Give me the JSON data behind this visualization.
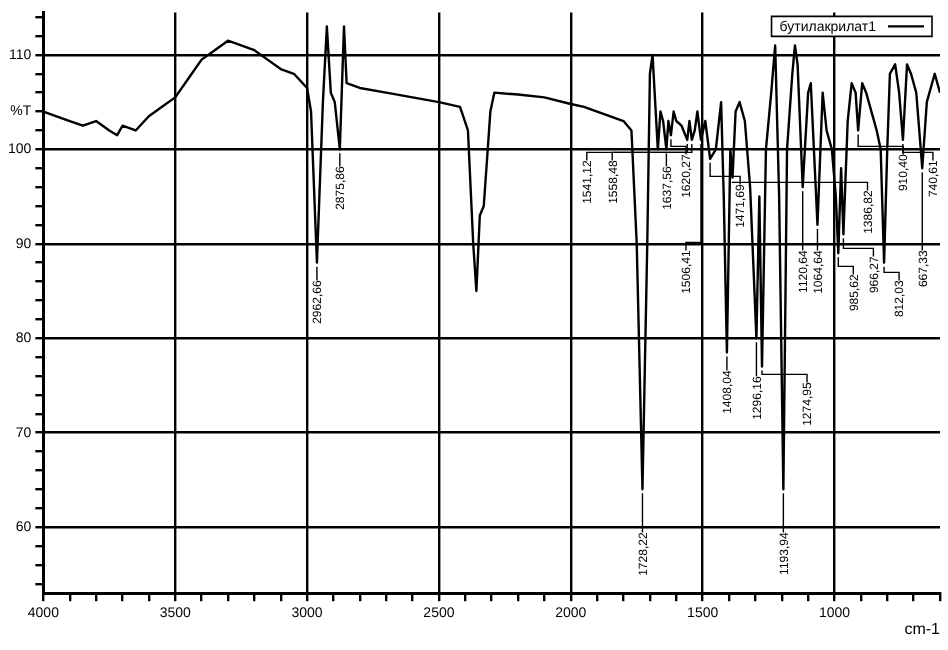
{
  "chart_data": {
    "type": "line",
    "xlabel": "cm-1",
    "ylabel": "%T",
    "legend": "top right",
    "grid": true,
    "marker": "none",
    "line_style": "solid",
    "xlim": [
      4000,
      600
    ],
    "ylim": [
      53,
      114.5
    ],
    "xticks": [
      4000,
      {
        "value": 3900,
        "label": null
      },
      {
        "value": 3800,
        "label": null
      },
      {
        "value": 3700,
        "label": null
      },
      {
        "value": 3600,
        "label": null
      },
      3500,
      {
        "value": 3400,
        "label": null
      },
      {
        "value": 3300,
        "label": null
      },
      {
        "value": 3200,
        "label": null
      },
      {
        "value": 3100,
        "label": null
      },
      3000,
      {
        "value": 2900,
        "label": null
      },
      {
        "value": 2800,
        "label": null
      },
      {
        "value": 2700,
        "label": null
      },
      {
        "value": 2600,
        "label": null
      },
      2500,
      {
        "value": 2400,
        "label": null
      },
      {
        "value": 2300,
        "label": null
      },
      {
        "value": 2200,
        "label": null
      },
      {
        "value": 2100,
        "label": null
      },
      2000,
      {
        "value": 1900,
        "label": null
      },
      {
        "value": 1800,
        "label": null
      },
      {
        "value": 1700,
        "label": null
      },
      {
        "value": 1600,
        "label": null
      },
      1500,
      {
        "value": 1400,
        "label": null
      },
      {
        "value": 1300,
        "label": null
      },
      {
        "value": 1200,
        "label": null
      },
      {
        "value": 1100,
        "label": null
      },
      1000,
      {
        "value": 900,
        "label": null
      },
      {
        "value": 800,
        "label": null
      },
      {
        "value": 700,
        "label": null
      },
      {
        "value": 600,
        "label": null
      }
    ],
    "yticks": [
      {
        "value": 54,
        "label": null
      },
      {
        "value": 56,
        "label": null
      },
      {
        "value": 58,
        "label": null
      },
      60,
      {
        "value": 62,
        "label": null
      },
      {
        "value": 64,
        "label": null
      },
      {
        "value": 66,
        "label": null
      },
      {
        "value": 68,
        "label": null
      },
      70,
      {
        "value": 72,
        "label": null
      },
      {
        "value": 74,
        "label": null
      },
      {
        "value": 76,
        "label": null
      },
      {
        "value": 78,
        "label": null
      },
      80,
      {
        "value": 82,
        "label": null
      },
      {
        "value": 84,
        "label": null
      },
      {
        "value": 86,
        "label": null
      },
      {
        "value": 88,
        "label": null
      },
      90,
      {
        "value": 92,
        "label": null
      },
      {
        "value": 94,
        "label": null
      },
      {
        "value": 96,
        "label": null
      },
      {
        "value": 98,
        "label": null
      },
      100,
      {
        "value": 102,
        "label": null
      },
      {
        "value": 104,
        "label": null
      },
      {
        "value": 106,
        "label": null
      },
      {
        "value": 108,
        "label": null
      },
      110,
      {
        "value": 112,
        "label": null
      },
      {
        "value": 114,
        "label": null
      }
    ],
    "series": [
      {
        "name": "бутилакрилат1",
        "color": "#000000",
        "x": [
          4000,
          3950,
          3900,
          3850,
          3800,
          3750,
          3720,
          3700,
          3650,
          3600,
          3550,
          3500,
          3450,
          3400,
          3350,
          3300,
          3250,
          3200,
          3150,
          3100,
          3050,
          3000,
          2985,
          2962.66,
          2940,
          2925,
          2910,
          2895,
          2875.86,
          2860,
          2850,
          2800,
          2700,
          2600,
          2500,
          2420,
          2390,
          2370,
          2358,
          2345,
          2330,
          2320,
          2305,
          2290,
          2200,
          2100,
          2000,
          1950,
          1900,
          1850,
          1800,
          1770,
          1750,
          1728.22,
          1710,
          1700,
          1690,
          1680,
          1670,
          1660,
          1650,
          1637.56,
          1630,
          1620.27,
          1610,
          1600,
          1580,
          1558.48,
          1550,
          1541.12,
          1530,
          1520,
          1506.41,
          1490,
          1471.69,
          1450,
          1430,
          1420,
          1408.04,
          1395,
          1386.82,
          1375,
          1360,
          1340,
          1320,
          1296.16,
          1285,
          1274.95,
          1260,
          1240,
          1225,
          1210,
          1193.94,
          1180,
          1160,
          1150,
          1140,
          1120.64,
          1100,
          1090,
          1064.64,
          1045,
          1030,
          1010,
          995,
          985.62,
          975,
          966.27,
          950,
          935,
          920,
          910.4,
          895,
          880,
          860,
          840,
          825,
          812.03,
          800,
          790,
          770,
          755,
          740.61,
          725,
          710,
          690,
          667.33,
          650,
          620,
          600
        ],
        "values": [
          104,
          103.5,
          103,
          102.5,
          103,
          102,
          101.5,
          102.5,
          102,
          103.5,
          104.5,
          105.5,
          107.5,
          109.5,
          110.5,
          111.5,
          111,
          110.5,
          109.5,
          108.5,
          108,
          106.5,
          104,
          88,
          105,
          113,
          106,
          105,
          100,
          113,
          107,
          106.5,
          106,
          105.5,
          105,
          104.5,
          102,
          90,
          85,
          93,
          94,
          98,
          104,
          106,
          105.8,
          105.5,
          104.8,
          104.5,
          104,
          103.5,
          103,
          102,
          90,
          64,
          90,
          108,
          110,
          105,
          100,
          104,
          103,
          100,
          103,
          101.5,
          104,
          103,
          102.5,
          101,
          103,
          101,
          102,
          104,
          101,
          103,
          99,
          100,
          105,
          95,
          78.5,
          100,
          97,
          104,
          105,
          103,
          96,
          80,
          95,
          77,
          100,
          106,
          111,
          95,
          64,
          100,
          108,
          111,
          109,
          96,
          106,
          107,
          92,
          106,
          102,
          100,
          95,
          89,
          98,
          91,
          103,
          107,
          106,
          102,
          107,
          106,
          104,
          102,
          100,
          88,
          100,
          108,
          109,
          106,
          101,
          109,
          108,
          106,
          98,
          105,
          108,
          106
        ]
      }
    ],
    "annotations": [
      {
        "text": "2962,66",
        "x": 2962.66,
        "y": 88
      },
      {
        "text": "2875,86",
        "x": 2875.86,
        "y": 100
      },
      {
        "text": "1728,22",
        "x": 1728.22,
        "y": 64
      },
      {
        "text": "1637,56",
        "x": 1637.56,
        "y": 100
      },
      {
        "text": "1620,27",
        "x": 1620.27,
        "y": 101.5
      },
      {
        "text": "1558,48",
        "x": 1558.48,
        "y": 101
      },
      {
        "text": "1541,12",
        "x": 1541.12,
        "y": 101
      },
      {
        "text": "1506,41",
        "x": 1506.41,
        "y": 101
      },
      {
        "text": "1471,69",
        "x": 1471.69,
        "y": 99
      },
      {
        "text": "1408,04",
        "x": 1408.04,
        "y": 78.5
      },
      {
        "text": "1386,82",
        "x": 1386.82,
        "y": 97
      },
      {
        "text": "1296,16",
        "x": 1296.16,
        "y": 80
      },
      {
        "text": "1274,95",
        "x": 1274.95,
        "y": 77
      },
      {
        "text": "1193,94",
        "x": 1193.94,
        "y": 64
      },
      {
        "text": "1120,64",
        "x": 1120.64,
        "y": 96
      },
      {
        "text": "1064,64",
        "x": 1064.64,
        "y": 92
      },
      {
        "text": "985,62",
        "x": 985.62,
        "y": 89
      },
      {
        "text": "966,27",
        "x": 966.27,
        "y": 91
      },
      {
        "text": "910,40",
        "x": 910.4,
        "y": 102
      },
      {
        "text": "812,03",
        "x": 812.03,
        "y": 88
      },
      {
        "text": "740,61",
        "x": 740.61,
        "y": 101
      },
      {
        "text": "667,33",
        "x": 667.33,
        "y": 98
      }
    ]
  }
}
